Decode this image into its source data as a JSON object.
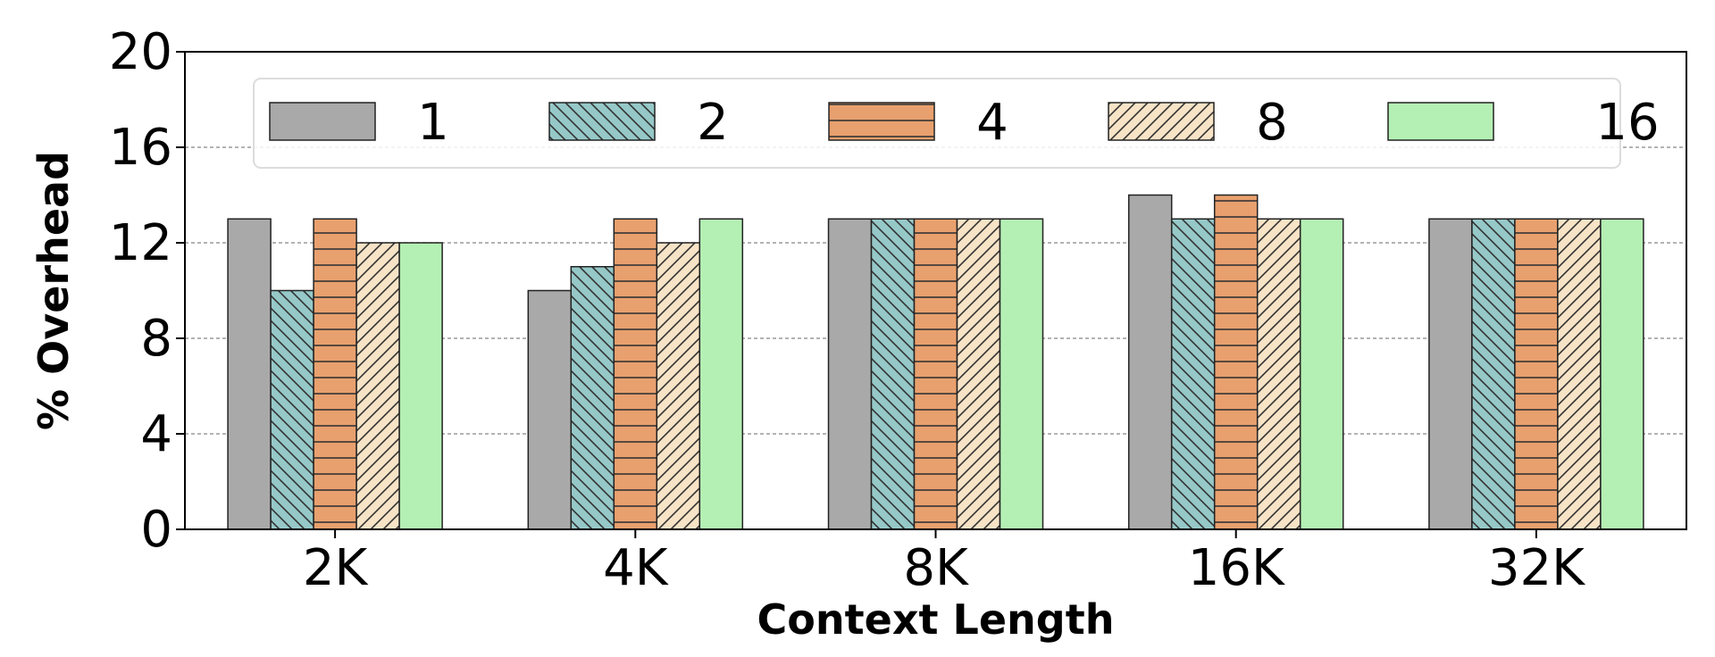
{
  "chart_data": {
    "type": "bar",
    "title": "",
    "xlabel": "Context Length",
    "ylabel": "% Overhead",
    "ylim": [
      0,
      20
    ],
    "yticks": [
      0,
      4,
      8,
      12,
      16,
      20
    ],
    "grid": "y dashed",
    "legend_position": "top",
    "legend_title": "",
    "categories": [
      "2K",
      "4K",
      "8K",
      "16K",
      "32K"
    ],
    "series": [
      {
        "name": "1",
        "values": [
          13,
          10,
          13,
          14,
          13
        ],
        "color": "#a9a9a9",
        "hatch": "none"
      },
      {
        "name": "2",
        "values": [
          10,
          11,
          13,
          13,
          13
        ],
        "color": "#96c8c8",
        "hatch": "back-diagonal"
      },
      {
        "name": "4",
        "values": [
          13,
          13,
          13,
          14,
          13
        ],
        "color": "#e8a06e",
        "hatch": "horizontal"
      },
      {
        "name": "8",
        "values": [
          12,
          12,
          13,
          13,
          13
        ],
        "color": "#f7e3c6",
        "hatch": "forward-diagonal"
      },
      {
        "name": "16",
        "values": [
          12,
          13,
          13,
          13,
          13
        ],
        "color": "#b4f0b4",
        "hatch": "none"
      }
    ]
  }
}
